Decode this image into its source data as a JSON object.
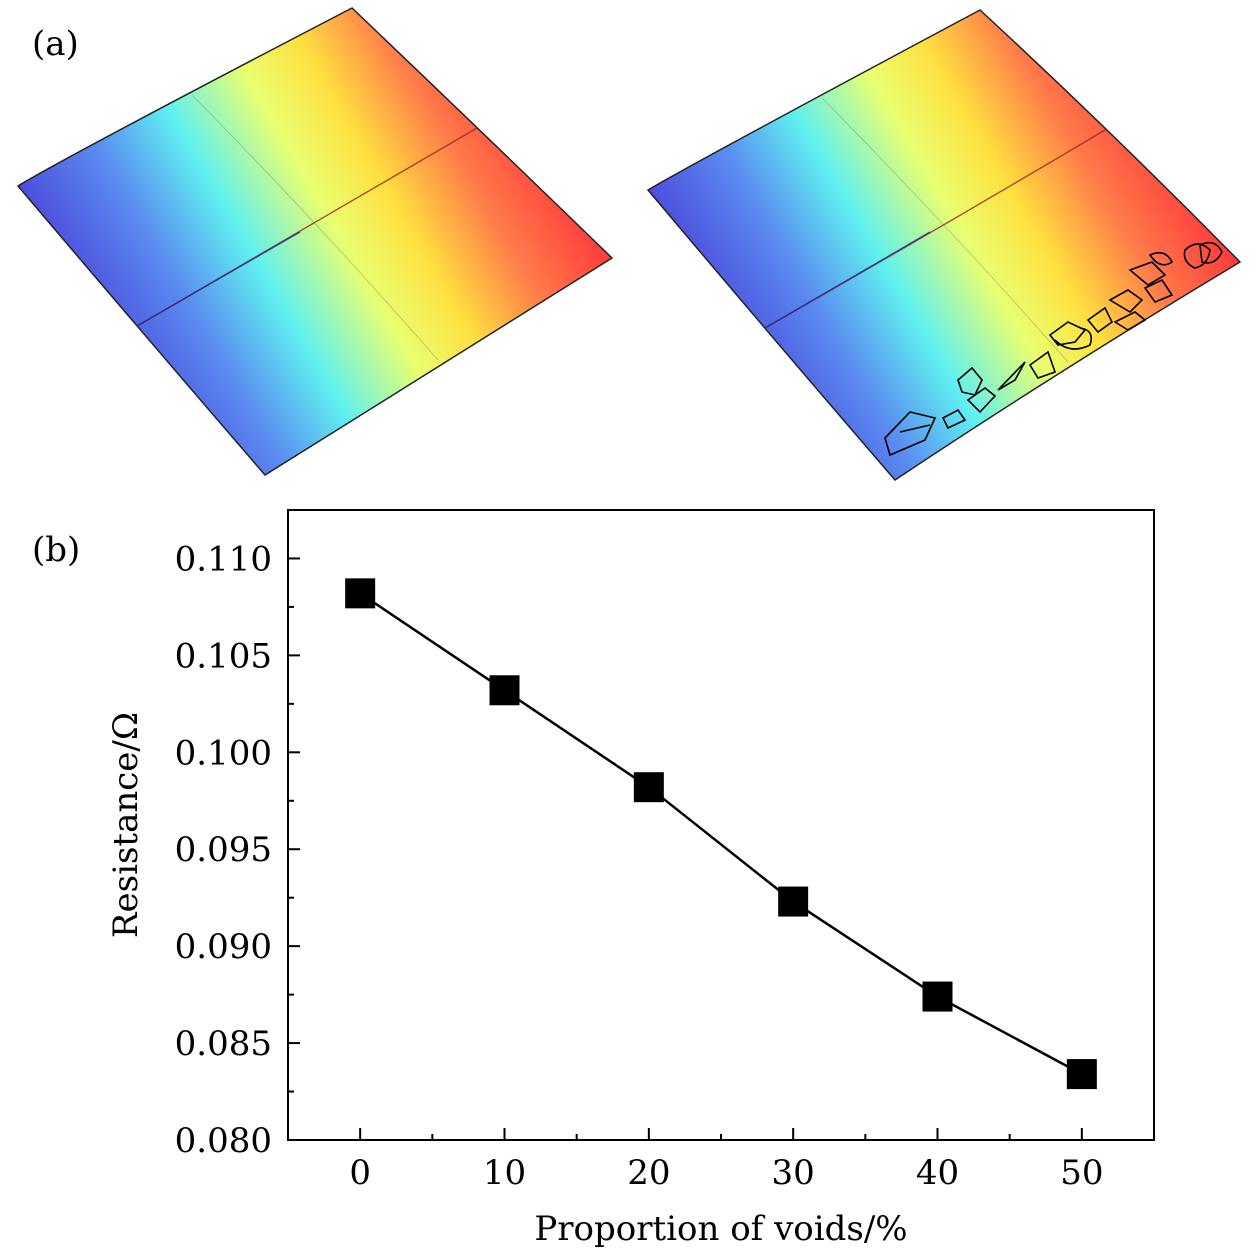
{
  "panel_a": {
    "label": "(a)"
  },
  "panel_b": {
    "label": "(b)"
  },
  "chart_data": {
    "type": "line",
    "marker": "square",
    "title": "",
    "xlabel": "Proportion of voids/%",
    "ylabel": "Resistance/Ω",
    "x": [
      0,
      10,
      20,
      30,
      40,
      50
    ],
    "values": [
      0.1082,
      0.1032,
      0.0982,
      0.0923,
      0.0874,
      0.0834
    ],
    "xlim": [
      -5,
      55
    ],
    "ylim": [
      0.08,
      0.1125
    ],
    "xticks": [
      "0",
      "10",
      "20",
      "30",
      "40",
      "50"
    ],
    "yticks": [
      "0.080",
      "0.085",
      "0.090",
      "0.095",
      "0.100",
      "0.105",
      "0.110"
    ],
    "grid": false,
    "colors": {
      "line": "#000000",
      "marker": "#000000"
    }
  }
}
